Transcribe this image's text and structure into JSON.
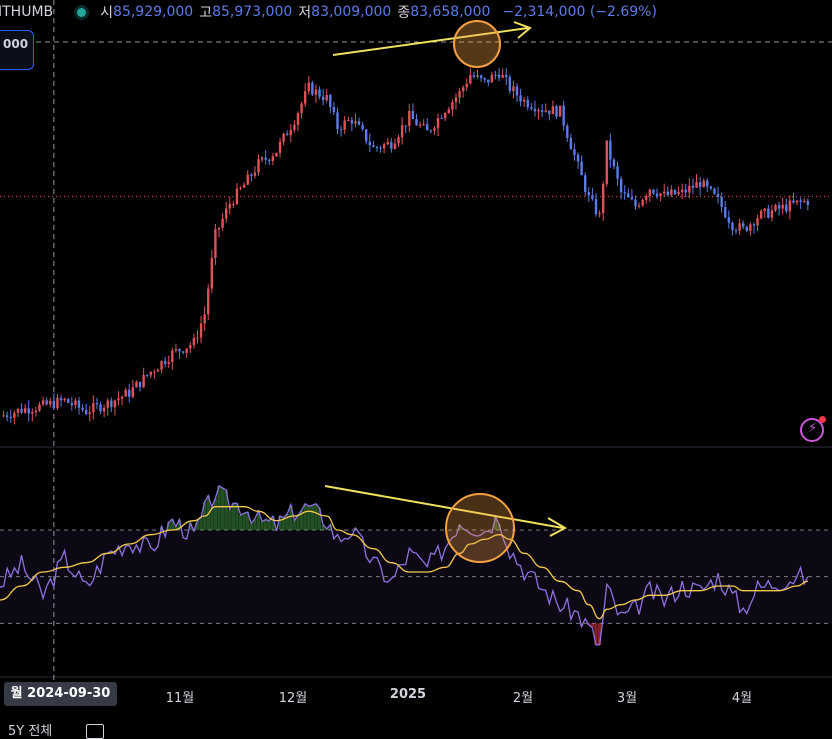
{
  "header": {
    "exchange": "ITHUMB",
    "open_label": "시",
    "open": "85,929,000",
    "high_label": "고",
    "high": "85,973,000",
    "low_label": "저",
    "low": "83,009,000",
    "close_label": "종",
    "close": "83,658,000",
    "change": "−2,314,000 (−2.69%)"
  },
  "price_box": "000",
  "crosshair_date": "월 2024-09-30",
  "x_axis": {
    "labels": [
      "11월",
      "12월",
      "2025",
      "2월",
      "3월",
      "4월"
    ]
  },
  "bottom_bar": {
    "text": "5Y 전체"
  },
  "colors": {
    "up": "#e0525a",
    "down": "#5b7be8",
    "rsi": "#8f70e0",
    "ma": "#f2c94c",
    "annotation": "#f0e060",
    "circle": "#f5a042"
  },
  "chart_data": [
    {
      "type": "candlestick",
      "title": "",
      "x_range": [
        "2024-09-15",
        "2025-04-30"
      ],
      "dates": [
        "2024-09-15",
        "2024-09-21",
        "2024-09-27",
        "2024-10-03",
        "2024-10-09",
        "2024-10-15",
        "2024-10-21",
        "2024-10-27",
        "2024-11-02",
        "2024-11-08",
        "2024-11-11",
        "2024-11-14",
        "2024-11-18",
        "2024-11-22",
        "2024-11-26",
        "2024-12-01",
        "2024-12-06",
        "2024-12-10",
        "2024-12-15",
        "2024-12-18",
        "2024-12-22",
        "2024-12-28",
        "2025-01-02",
        "2025-01-07",
        "2025-01-12",
        "2025-01-17",
        "2025-01-21",
        "2025-01-24",
        "2025-01-28",
        "2025-02-01",
        "2025-02-04",
        "2025-02-08",
        "2025-02-13",
        "2025-02-18",
        "2025-02-23",
        "2025-02-26",
        "2025-03-01",
        "2025-03-03",
        "2025-03-07",
        "2025-03-11",
        "2025-03-15",
        "2025-03-19",
        "2025-03-24",
        "2025-03-29",
        "2025-04-03",
        "2025-04-07",
        "2025-04-10",
        "2025-04-14",
        "2025-04-20",
        "2025-04-25",
        "2025-04-28"
      ],
      "close": [
        86.5,
        87.8,
        88.5,
        89.5,
        87.5,
        89.0,
        91.0,
        95.0,
        98.5,
        100.5,
        106.0,
        121.0,
        127.0,
        130.5,
        134.5,
        137.0,
        143.0,
        149.0,
        147.0,
        141.5,
        143.0,
        137.5,
        138.5,
        143.5,
        140.5,
        145.0,
        148.0,
        151.5,
        150.0,
        152.0,
        149.0,
        146.5,
        145.0,
        144.5,
        134.0,
        128.0,
        124.5,
        138.0,
        129.0,
        126.5,
        130.0,
        128.5,
        129.0,
        131.0,
        127.5,
        123.0,
        122.0,
        124.5,
        126.0,
        127.0,
        127.5
      ],
      "y_range": [
        82,
        160
      ],
      "last_price_line": 128.3
    },
    {
      "type": "line",
      "title": "",
      "dates": [
        "2024-09-15",
        "2024-09-21",
        "2024-09-27",
        "2024-10-03",
        "2024-10-09",
        "2024-10-15",
        "2024-10-21",
        "2024-10-27",
        "2024-11-02",
        "2024-11-08",
        "2024-11-11",
        "2024-11-14",
        "2024-11-18",
        "2024-11-22",
        "2024-11-26",
        "2024-12-01",
        "2024-12-06",
        "2024-12-10",
        "2024-12-15",
        "2024-12-18",
        "2024-12-22",
        "2024-12-28",
        "2025-01-02",
        "2025-01-07",
        "2025-01-12",
        "2025-01-17",
        "2025-01-21",
        "2025-01-24",
        "2025-01-28",
        "2025-02-01",
        "2025-02-04",
        "2025-02-08",
        "2025-02-13",
        "2025-02-18",
        "2025-02-23",
        "2025-02-26",
        "2025-03-01",
        "2025-03-03",
        "2025-03-07",
        "2025-03-11",
        "2025-03-15",
        "2025-03-19",
        "2025-03-24",
        "2025-03-29",
        "2025-04-03",
        "2025-04-07",
        "2025-04-10",
        "2025-04-14",
        "2025-04-20",
        "2025-04-25",
        "2025-04-28"
      ],
      "rsi": [
        47,
        55,
        42,
        58,
        45,
        60,
        65,
        62,
        74,
        68,
        78,
        86,
        82,
        80,
        74,
        72,
        78,
        80,
        74,
        66,
        70,
        56,
        48,
        60,
        54,
        63,
        74,
        72,
        70,
        76,
        62,
        53,
        45,
        38,
        34,
        28,
        20,
        45,
        32,
        36,
        44,
        40,
        46,
        44,
        50,
        42,
        36,
        45,
        48,
        50,
        50
      ],
      "rsi_ma": [
        40,
        46,
        52,
        54,
        56,
        60,
        64,
        68,
        70,
        74,
        76,
        80,
        80,
        80,
        78,
        74,
        76,
        78,
        76,
        70,
        68,
        62,
        56,
        52,
        52,
        54,
        60,
        64,
        66,
        68,
        66,
        60,
        54,
        48,
        44,
        38,
        32,
        36,
        38,
        40,
        42,
        42,
        44,
        44,
        46,
        46,
        44,
        44,
        44,
        46,
        48
      ],
      "levels": [
        70,
        50,
        30
      ],
      "y_range": [
        10,
        100
      ]
    }
  ]
}
